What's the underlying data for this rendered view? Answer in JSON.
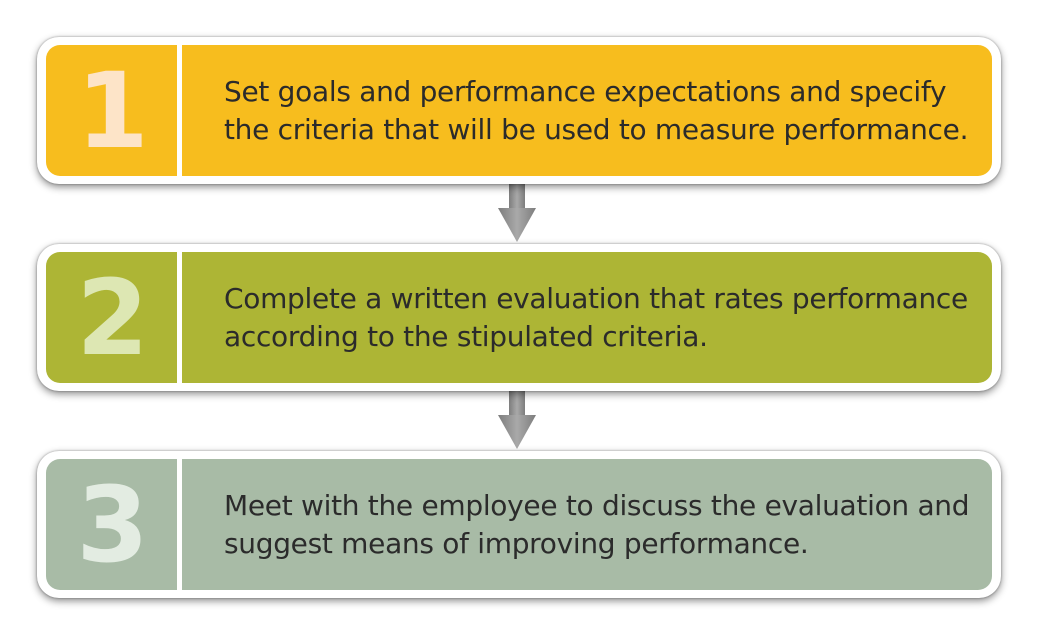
{
  "steps": [
    {
      "number": "1",
      "text_line1": "Set goals and performance expectations and specify",
      "text_line2": "the criteria that will be used to measure performance.",
      "colors": {
        "fill": "#f7bd1e",
        "number": "#fde4c8"
      }
    },
    {
      "number": "2",
      "text_line1": "Complete a written evaluation that rates performance",
      "text_line2": "according to the stipulated criteria.",
      "colors": {
        "fill": "#adb535",
        "number": "#dde7b3"
      }
    },
    {
      "number": "3",
      "text_line1": "Meet with the employee to discuss the evaluation and",
      "text_line2": "suggest means of improving performance.",
      "colors": {
        "fill": "#a8bba6",
        "number": "#e3ece2"
      }
    }
  ],
  "connectors": [
    {
      "icon": "down-arrow-icon",
      "color": "#8a8a8a"
    },
    {
      "icon": "down-arrow-icon",
      "color": "#8a8a8a"
    }
  ]
}
